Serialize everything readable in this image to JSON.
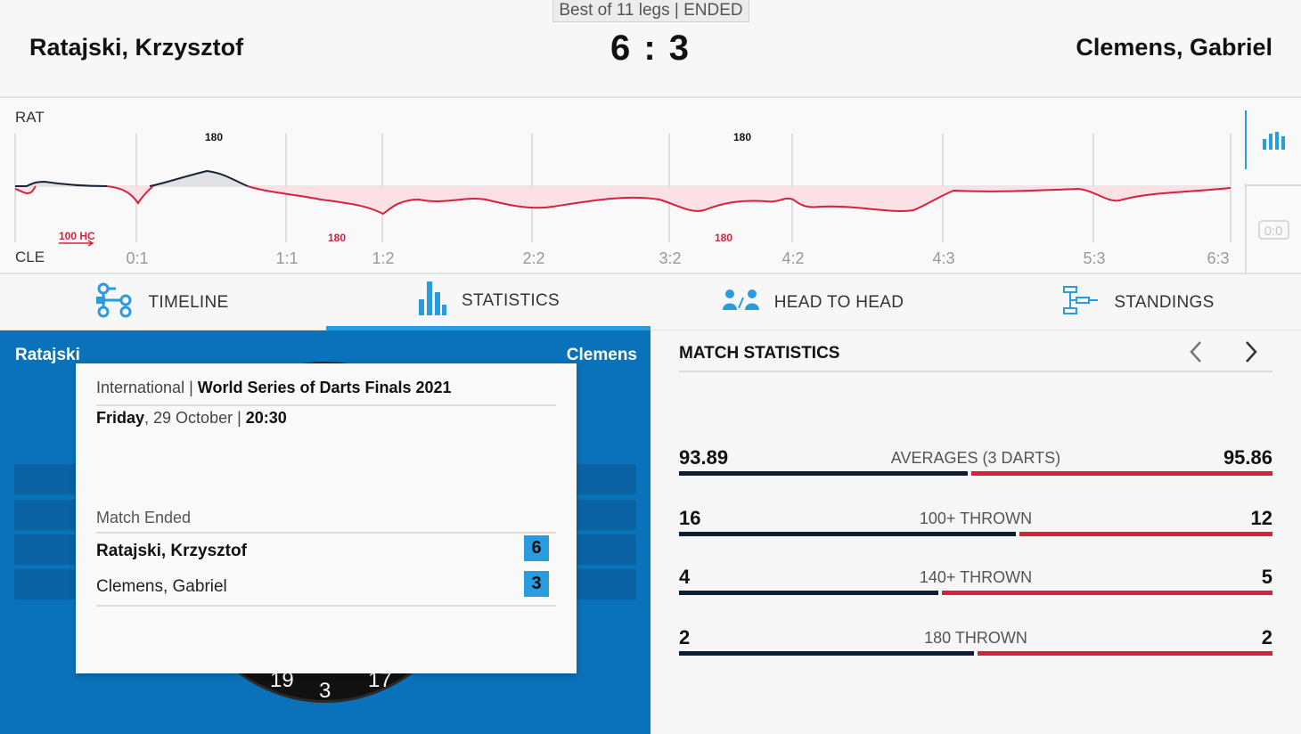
{
  "header": {
    "format": "Best of 11 legs | ENDED",
    "player_left": "Ratajski, Krzysztof",
    "player_right": "Clemens, Gabriel",
    "score": "6 : 3"
  },
  "timeline": {
    "top_label": "RAT",
    "bottom_label": "CLE",
    "leg_scores": [
      "0:1",
      "1:1",
      "1:2",
      "2:2",
      "3:2",
      "4:2",
      "4:3",
      "5:3",
      "6:3"
    ],
    "top_events": [
      "180",
      "180"
    ],
    "bottom_events": [
      "100 HC",
      "180",
      "180"
    ],
    "reset_label": "0:0",
    "chart_icon": "bar-chart-icon"
  },
  "tabs": [
    {
      "label": "TIMELINE",
      "icon": "timeline-icon"
    },
    {
      "label": "STATISTICS",
      "icon": "statistics-icon"
    },
    {
      "label": "HEAD TO HEAD",
      "icon": "head-to-head-icon"
    },
    {
      "label": "STANDINGS",
      "icon": "standings-icon"
    }
  ],
  "active_tab": "STATISTICS",
  "left_panel": {
    "left_name": "Ratajski",
    "right_name": "Clemens",
    "board_numbers": [
      "19",
      "3",
      "17"
    ]
  },
  "popup": {
    "category": "International",
    "separator": "|",
    "event": "World Series of Darts Finals 2021",
    "day": "Friday",
    "date": ", 29 October | ",
    "time": "20:30",
    "status": "Match Ended",
    "players": [
      {
        "name": "Ratajski, Krzysztof",
        "score": "6"
      },
      {
        "name": "Clemens, Gabriel",
        "score": "3"
      }
    ]
  },
  "match_statistics": {
    "title": "MATCH STATISTICS",
    "prev_icon": "chevron-left-icon",
    "next_icon": "chevron-right-icon",
    "rows": [
      {
        "label": "AVERAGES (3 DARTS)",
        "left": "93.89",
        "right": "95.86",
        "left_share": 0.49
      },
      {
        "label": "100+ THROWN",
        "left": "16",
        "right": "12",
        "left_share": 0.57
      },
      {
        "label": "140+ THROWN",
        "left": "4",
        "right": "5",
        "left_share": 0.44
      },
      {
        "label": "180 THROWN",
        "left": "2",
        "right": "2",
        "left_share": 0.5
      }
    ]
  },
  "colors": {
    "accent_blue": "#2b9be0",
    "panel_blue": "#0a72bb",
    "home_dark": "#0f1f33",
    "away_red": "#d4213d"
  }
}
